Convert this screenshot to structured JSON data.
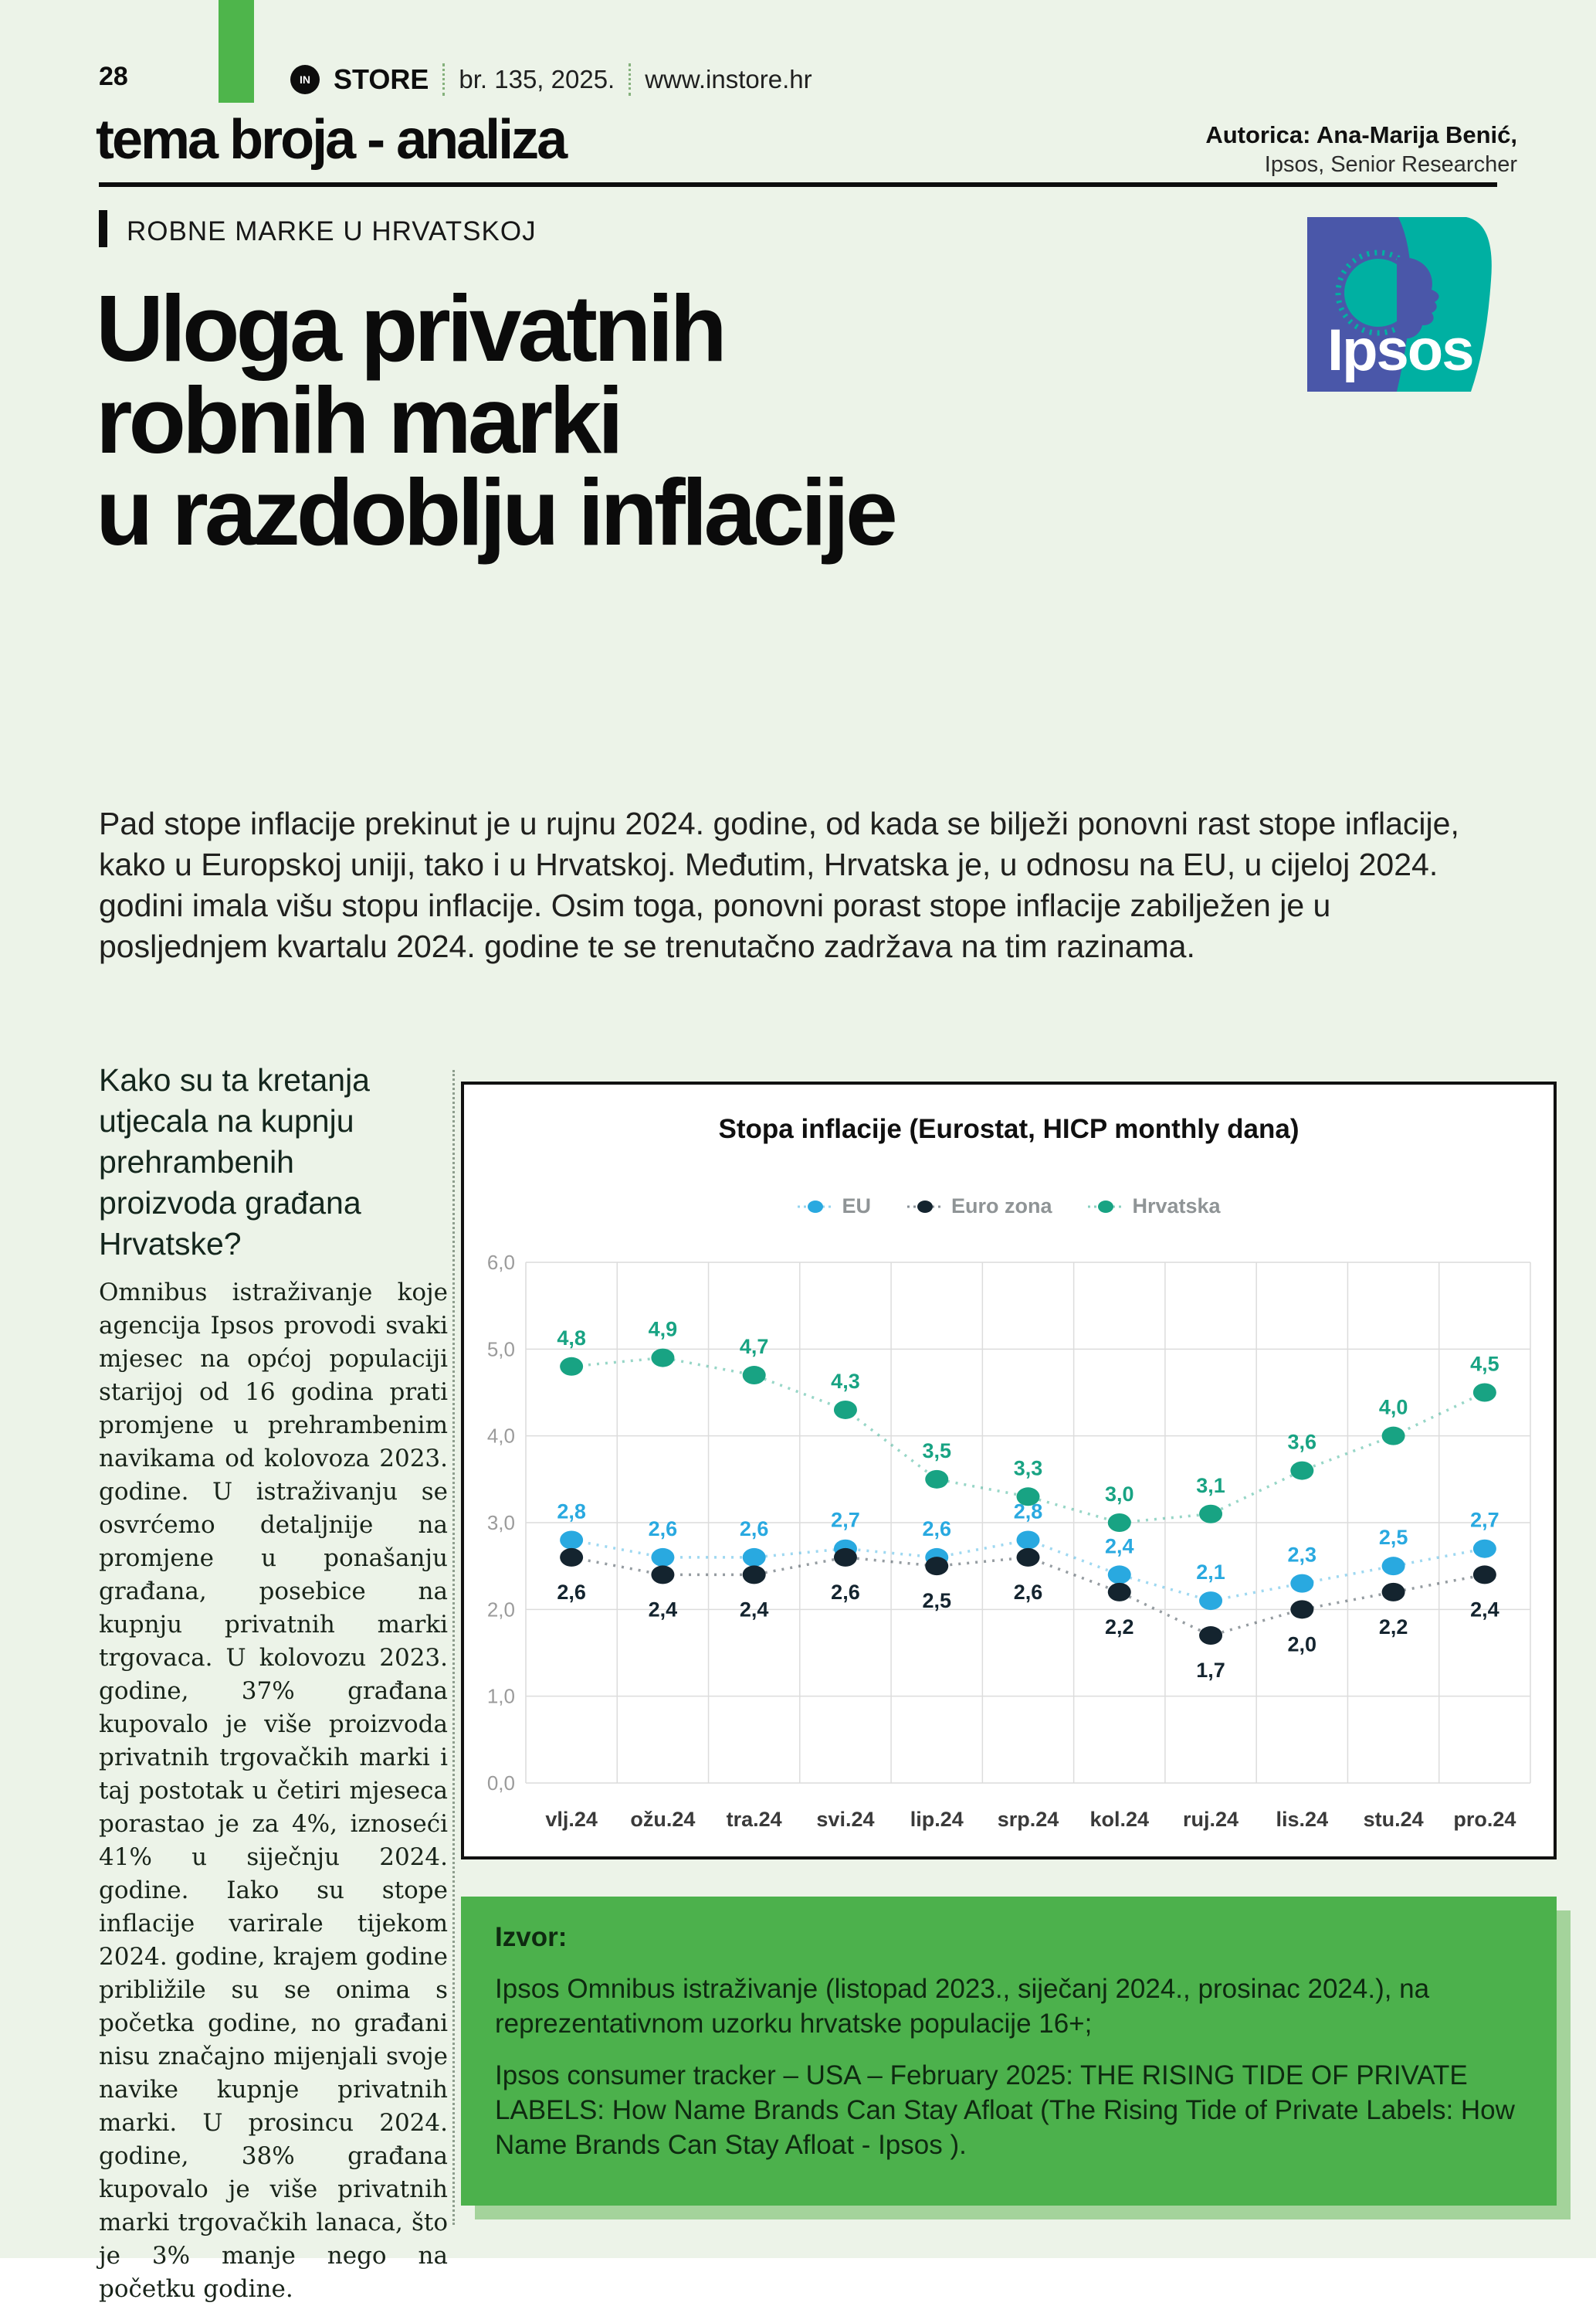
{
  "header": {
    "page_number": "28",
    "brand_in": "IN",
    "brand_store": "STORE",
    "issue": "br. 135, 2025.",
    "site": "www.instore.hr",
    "section_title": "tema broja - analiza",
    "author_line1": "Autorica: Ana-Marija Benić,",
    "author_line2": "Ipsos, Senior Researcher"
  },
  "article": {
    "kicker": "ROBNE MARKE U HRVATSKOJ",
    "title_lines": [
      "Uloga privatnih",
      "robnih marki",
      "u razdoblju inflacije"
    ],
    "intro": "Pad stope inflacije prekinut je u rujnu 2024. godine, od kada se bilježi ponovni rast stope inflacije, kako u Europskoj uniji, tako i u Hrvatskoj. Međutim, Hrvatska je, u odnosu na EU, u cijeloj 2024. godini imala višu stopu inflacije. Osim toga, ponovni porast stope inflacije zabilježen je u posljednjem kvartalu 2024. godine te se trenutačno zadržava na tim razinama."
  },
  "left_column": {
    "question": "Kako su ta kretanja utjecala na kupnju prehrambenih proizvoda građana Hrvatske?",
    "body": "Omnibus istraživanje koje agencija Ipsos provodi svaki mjesec na općoj populaciji starijoj od 16 godina prati promjene u prehrambenim navikama od kolovoza 2023. godine. U istraživanju se osvrćemo detaljnije na promjene u ponašanju građana, posebice na kupnju privatnih marki trgovaca. U kolovozu 2023. godine, 37% građana kupovalo je više proizvoda privatnih trgovačkih marki i taj postotak u četiri mjeseca porastao je za 4%, iznoseći 41% u siječnju 2024. godine. Iako su stope inflacije varirale tijekom 2024. godine, krajem godine približile su se onima s početka godine, no građani nisu značajno mijenjali svoje navike kupnje privatnih marki. U prosincu 2024. godine, 38% građana kupovalo je više privatnih marki trgovačkih lanaca, što je 3% manje nego na početku godine."
  },
  "ipsos_logo": {
    "text": "Ipsos",
    "blue": "#4a57a9",
    "teal": "#00b0a2"
  },
  "chart_data": {
    "type": "line",
    "title": "Stopa inflacije (Eurostat, HICP monthly dana)",
    "categories": [
      "vlj.24",
      "ožu.24",
      "tra.24",
      "svi.24",
      "lip.24",
      "srp.24",
      "kol.24",
      "ruj.24",
      "lis.24",
      "stu.24",
      "pro.24"
    ],
    "series": [
      {
        "name": "EU",
        "color": "#29a9e0",
        "label_position": "above",
        "values": [
          2.8,
          2.6,
          2.6,
          2.7,
          2.6,
          2.8,
          2.4,
          2.1,
          2.3,
          2.5,
          2.7
        ]
      },
      {
        "name": "Euro zona",
        "color": "#14242f",
        "label_position": "below",
        "values": [
          2.6,
          2.4,
          2.4,
          2.6,
          2.5,
          2.6,
          2.2,
          1.7,
          2.0,
          2.2,
          2.4
        ]
      },
      {
        "name": "Hrvatska",
        "color": "#18a383",
        "label_position": "above",
        "values": [
          4.8,
          4.9,
          4.7,
          4.3,
          3.5,
          3.3,
          3.0,
          3.1,
          3.6,
          4.0,
          4.5
        ]
      }
    ],
    "ylim": [
      0,
      6
    ],
    "ytick_step": 1,
    "grid": true,
    "legend_position": "top",
    "decimal_separator": ","
  },
  "source_box": {
    "heading": "Izvor:",
    "items": [
      "Ipsos Omnibus istraživanje (listopad 2023., siječanj 2024., prosinac 2024.), na reprezentativnom uzorku hrvatske populacije 16+;",
      "Ipsos consumer tracker – USA – February 2025: THE RISING TIDE OF PRIVATE LABELS: How Name Brands Can Stay Afloat (The Rising Tide of Private Labels: How Name Brands Can Stay Afloat - Ipsos )."
    ]
  }
}
